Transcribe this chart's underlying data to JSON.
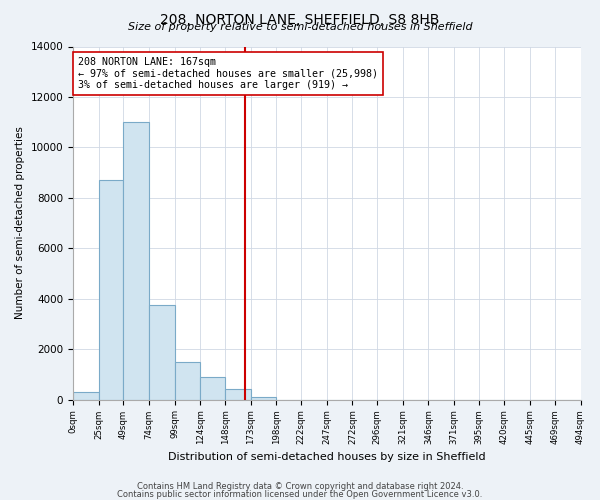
{
  "title": "208, NORTON LANE, SHEFFIELD, S8 8HB",
  "subtitle": "Size of property relative to semi-detached houses in Sheffield",
  "xlabel": "Distribution of semi-detached houses by size in Sheffield",
  "ylabel": "Number of semi-detached properties",
  "bar_edges": [
    0,
    25,
    49,
    74,
    99,
    124,
    148,
    173,
    198,
    222,
    247,
    272,
    296,
    321,
    346,
    371,
    395,
    420,
    445,
    469,
    494
  ],
  "bar_heights": [
    300,
    8700,
    11000,
    3750,
    1500,
    900,
    400,
    120,
    0,
    0,
    0,
    0,
    0,
    0,
    0,
    0,
    0,
    0,
    0,
    0
  ],
  "bar_color": "#d0e4f0",
  "bar_edge_color": "#7aaac8",
  "vline_x": 167,
  "vline_color": "#cc0000",
  "annotation_line1": "208 NORTON LANE: 167sqm",
  "annotation_line2": "← 97% of semi-detached houses are smaller (25,998)",
  "annotation_line3": "3% of semi-detached houses are larger (919) →",
  "annotation_box_color": "#ffffff",
  "annotation_box_edge": "#cc0000",
  "ylim": [
    0,
    14000
  ],
  "yticks": [
    0,
    2000,
    4000,
    6000,
    8000,
    10000,
    12000,
    14000
  ],
  "tick_labels": [
    "0sqm",
    "25sqm",
    "49sqm",
    "74sqm",
    "99sqm",
    "124sqm",
    "148sqm",
    "173sqm",
    "198sqm",
    "222sqm",
    "247sqm",
    "272sqm",
    "296sqm",
    "321sqm",
    "346sqm",
    "371sqm",
    "395sqm",
    "420sqm",
    "445sqm",
    "469sqm",
    "494sqm"
  ],
  "footer1": "Contains HM Land Registry data © Crown copyright and database right 2024.",
  "footer2": "Contains public sector information licensed under the Open Government Licence v3.0.",
  "background_color": "#edf2f7",
  "plot_background_color": "#ffffff",
  "grid_color": "#d0d8e4"
}
